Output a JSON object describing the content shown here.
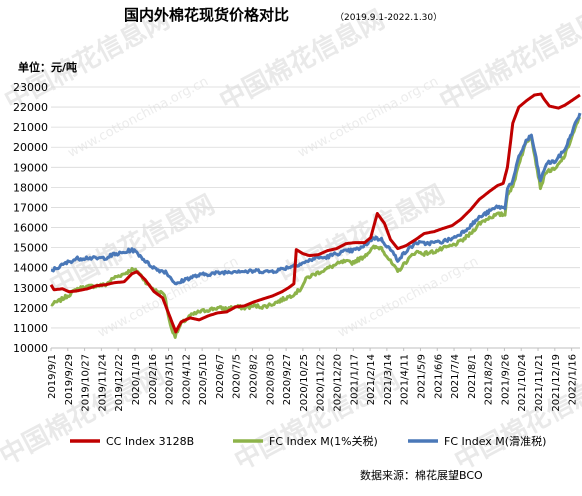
{
  "header": {
    "title": "国内外棉花现货价格对比",
    "title_note": "（2019.9.1-2022.1.30）",
    "unit": "单位：元/吨"
  },
  "watermark": {
    "brand": "中国棉花信息网",
    "url": "www.cottonchina.org.cn"
  },
  "source": "数据来源：棉花展望BCO",
  "colors": {
    "cc": "#c00000",
    "fc_1pct": "#8db34a",
    "fc_sliding": "#4a78b8",
    "grid": "#d9d9d9",
    "axis_text": "#000000"
  },
  "chart_data": {
    "type": "line",
    "title": "国内外棉花现货价格对比",
    "ylabel": "单位：元/吨",
    "ylim": [
      10000,
      23000
    ],
    "yticks": [
      10000,
      11000,
      12000,
      13000,
      14000,
      15000,
      16000,
      17000,
      18000,
      19000,
      20000,
      21000,
      22000,
      23000
    ],
    "xlim": [
      "2019-09-01",
      "2022-01-30"
    ],
    "xticks": [
      "2019/9/1",
      "2019/9/29",
      "2019/10/27",
      "2019/11/24",
      "2019/12/22",
      "2020/1/19",
      "2020/2/16",
      "2020/3/15",
      "2020/4/12",
      "2020/5/10",
      "2020/6/7",
      "2020/7/5",
      "2020/8/2",
      "2020/8/30",
      "2020/9/27",
      "2020/10/25",
      "2020/11/22",
      "2020/12/20",
      "2021/1/17",
      "2021/2/14",
      "2021/3/14",
      "2021/4/11",
      "2021/5/9",
      "2021/6/6",
      "2021/7/4",
      "2021/8/1",
      "2021/8/29",
      "2021/9/26",
      "2021/10/24",
      "2021/11/21",
      "2021/12/19",
      "2022/1/16"
    ],
    "grid": true,
    "legend": "bottom",
    "series": [
      {
        "name": "CC Index 3128B",
        "points": [
          [
            "2019-09-01",
            13150
          ],
          [
            "2019-09-06",
            12900
          ],
          [
            "2019-09-20",
            12950
          ],
          [
            "2019-10-01",
            12800
          ],
          [
            "2019-10-15",
            12850
          ],
          [
            "2019-11-01",
            12950
          ],
          [
            "2019-11-15",
            13100
          ],
          [
            "2019-12-01",
            13150
          ],
          [
            "2019-12-15",
            13250
          ],
          [
            "2020-01-01",
            13300
          ],
          [
            "2020-01-14",
            13700
          ],
          [
            "2020-01-22",
            13800
          ],
          [
            "2020-02-05",
            13400
          ],
          [
            "2020-02-20",
            12800
          ],
          [
            "2020-03-05",
            12500
          ],
          [
            "2020-03-18",
            11500
          ],
          [
            "2020-03-27",
            10800
          ],
          [
            "2020-04-05",
            11300
          ],
          [
            "2020-04-20",
            11500
          ],
          [
            "2020-05-05",
            11400
          ],
          [
            "2020-05-20",
            11600
          ],
          [
            "2020-06-05",
            11750
          ],
          [
            "2020-06-20",
            11800
          ],
          [
            "2020-07-05",
            12050
          ],
          [
            "2020-07-20",
            12100
          ],
          [
            "2020-08-05",
            12300
          ],
          [
            "2020-08-20",
            12450
          ],
          [
            "2020-09-05",
            12600
          ],
          [
            "2020-09-20",
            12800
          ],
          [
            "2020-10-01",
            13000
          ],
          [
            "2020-10-10",
            13200
          ],
          [
            "2020-10-14",
            14900
          ],
          [
            "2020-10-25",
            14700
          ],
          [
            "2020-11-05",
            14600
          ],
          [
            "2020-11-20",
            14650
          ],
          [
            "2020-12-05",
            14850
          ],
          [
            "2020-12-20",
            14950
          ],
          [
            "2021-01-05",
            15200
          ],
          [
            "2021-01-20",
            15250
          ],
          [
            "2021-02-05",
            15250
          ],
          [
            "2021-02-15",
            15500
          ],
          [
            "2021-02-26",
            16700
          ],
          [
            "2021-03-10",
            16200
          ],
          [
            "2021-03-20",
            15400
          ],
          [
            "2021-04-01",
            14950
          ],
          [
            "2021-04-15",
            15100
          ],
          [
            "2021-05-01",
            15400
          ],
          [
            "2021-05-15",
            15700
          ],
          [
            "2021-06-01",
            15800
          ],
          [
            "2021-06-15",
            15950
          ],
          [
            "2021-07-01",
            16100
          ],
          [
            "2021-07-15",
            16400
          ],
          [
            "2021-08-01",
            16900
          ],
          [
            "2021-08-15",
            17400
          ],
          [
            "2021-09-01",
            17800
          ],
          [
            "2021-09-15",
            18100
          ],
          [
            "2021-09-24",
            18200
          ],
          [
            "2021-10-01",
            19000
          ],
          [
            "2021-10-10",
            21200
          ],
          [
            "2021-10-20",
            22000
          ],
          [
            "2021-11-01",
            22300
          ],
          [
            "2021-11-15",
            22600
          ],
          [
            "2021-11-26",
            22650
          ],
          [
            "2021-12-01",
            22400
          ],
          [
            "2021-12-10",
            22050
          ],
          [
            "2021-12-25",
            21950
          ],
          [
            "2022-01-05",
            22100
          ],
          [
            "2022-01-20",
            22400
          ],
          [
            "2022-01-30",
            22600
          ]
        ]
      },
      {
        "name": "FC Index M(1%关税)",
        "points": [
          [
            "2019-09-01",
            12150
          ],
          [
            "2019-09-15",
            12350
          ],
          [
            "2019-10-01",
            12650
          ],
          [
            "2019-10-15",
            12950
          ],
          [
            "2019-11-01",
            13050
          ],
          [
            "2019-11-15",
            13100
          ],
          [
            "2019-12-01",
            13150
          ],
          [
            "2019-12-15",
            13500
          ],
          [
            "2020-01-01",
            13700
          ],
          [
            "2020-01-14",
            13900
          ],
          [
            "2020-01-24",
            13800
          ],
          [
            "2020-02-10",
            13150
          ],
          [
            "2020-02-25",
            12800
          ],
          [
            "2020-03-08",
            12700
          ],
          [
            "2020-03-18",
            11100
          ],
          [
            "2020-03-26",
            10600
          ],
          [
            "2020-04-05",
            11200
          ],
          [
            "2020-04-20",
            11600
          ],
          [
            "2020-05-05",
            11800
          ],
          [
            "2020-05-20",
            11900
          ],
          [
            "2020-06-05",
            12000
          ],
          [
            "2020-06-20",
            11950
          ],
          [
            "2020-07-05",
            12050
          ],
          [
            "2020-07-20",
            12000
          ],
          [
            "2020-08-05",
            12100
          ],
          [
            "2020-08-20",
            12050
          ],
          [
            "2020-09-05",
            12200
          ],
          [
            "2020-09-20",
            12400
          ],
          [
            "2020-10-05",
            12600
          ],
          [
            "2020-10-20",
            12900
          ],
          [
            "2020-11-01",
            13500
          ],
          [
            "2020-11-15",
            13700
          ],
          [
            "2020-12-01",
            13900
          ],
          [
            "2020-12-15",
            14100
          ],
          [
            "2021-01-01",
            14300
          ],
          [
            "2021-01-15",
            14250
          ],
          [
            "2021-02-01",
            14500
          ],
          [
            "2021-02-20",
            15000
          ],
          [
            "2021-03-05",
            15000
          ],
          [
            "2021-03-20",
            14300
          ],
          [
            "2021-04-01",
            13800
          ],
          [
            "2021-04-15",
            14300
          ],
          [
            "2021-05-01",
            14800
          ],
          [
            "2021-05-15",
            14700
          ],
          [
            "2021-06-01",
            14800
          ],
          [
            "2021-06-15",
            14950
          ],
          [
            "2021-07-01",
            15100
          ],
          [
            "2021-07-15",
            15300
          ],
          [
            "2021-08-01",
            15700
          ],
          [
            "2021-08-15",
            16200
          ],
          [
            "2021-09-01",
            16500
          ],
          [
            "2021-09-15",
            16650
          ],
          [
            "2021-09-27",
            16650
          ],
          [
            "2021-10-01",
            17700
          ],
          [
            "2021-10-10",
            18000
          ],
          [
            "2021-10-20",
            19200
          ],
          [
            "2021-11-01",
            20200
          ],
          [
            "2021-11-10",
            20600
          ],
          [
            "2021-11-16",
            19500
          ],
          [
            "2021-11-25",
            18000
          ],
          [
            "2021-12-05",
            18800
          ],
          [
            "2021-12-20",
            18900
          ],
          [
            "2022-01-05",
            19600
          ],
          [
            "2022-01-20",
            20800
          ],
          [
            "2022-01-30",
            21500
          ]
        ]
      },
      {
        "name": "FC Index M(滑准税)",
        "points": [
          [
            "2019-09-01",
            13850
          ],
          [
            "2019-09-15",
            14050
          ],
          [
            "2019-10-01",
            14300
          ],
          [
            "2019-10-15",
            14450
          ],
          [
            "2019-11-01",
            14500
          ],
          [
            "2019-11-15",
            14450
          ],
          [
            "2019-12-01",
            14500
          ],
          [
            "2019-12-15",
            14650
          ],
          [
            "2020-01-01",
            14750
          ],
          [
            "2020-01-14",
            14900
          ],
          [
            "2020-01-24",
            14700
          ],
          [
            "2020-02-10",
            14200
          ],
          [
            "2020-02-25",
            13900
          ],
          [
            "2020-03-10",
            13800
          ],
          [
            "2020-03-20",
            13450
          ],
          [
            "2020-03-28",
            13150
          ],
          [
            "2020-04-10",
            13400
          ],
          [
            "2020-04-25",
            13550
          ],
          [
            "2020-05-10",
            13650
          ],
          [
            "2020-05-25",
            13700
          ],
          [
            "2020-06-10",
            13750
          ],
          [
            "2020-06-25",
            13800
          ],
          [
            "2020-07-10",
            13850
          ],
          [
            "2020-07-25",
            13800
          ],
          [
            "2020-08-10",
            13850
          ],
          [
            "2020-08-25",
            13800
          ],
          [
            "2020-09-10",
            13850
          ],
          [
            "2020-09-22",
            13950
          ],
          [
            "2020-11-01",
            14300
          ],
          [
            "2020-11-15",
            14500
          ],
          [
            "2020-12-01",
            14500
          ],
          [
            "2020-12-15",
            14650
          ],
          [
            "2021-01-01",
            14800
          ],
          [
            "2021-01-15",
            14850
          ],
          [
            "2021-02-01",
            15000
          ],
          [
            "2021-02-20",
            15500
          ],
          [
            "2021-03-05",
            15400
          ],
          [
            "2021-03-20",
            14900
          ],
          [
            "2021-04-01",
            14400
          ],
          [
            "2021-04-15",
            14800
          ],
          [
            "2021-05-01",
            15250
          ],
          [
            "2021-05-15",
            15200
          ],
          [
            "2021-06-01",
            15250
          ],
          [
            "2021-06-15",
            15300
          ],
          [
            "2021-07-01",
            15450
          ],
          [
            "2021-07-15",
            15700
          ],
          [
            "2021-08-01",
            16100
          ],
          [
            "2021-08-15",
            16500
          ],
          [
            "2021-09-01",
            16800
          ],
          [
            "2021-09-15",
            17050
          ],
          [
            "2021-09-27",
            16950
          ],
          [
            "2021-10-01",
            18000
          ],
          [
            "2021-10-10",
            18300
          ],
          [
            "2021-10-20",
            19500
          ],
          [
            "2021-11-01",
            20300
          ],
          [
            "2021-11-10",
            20600
          ],
          [
            "2021-11-16",
            19700
          ],
          [
            "2021-11-25",
            18300
          ],
          [
            "2021-12-05",
            19200
          ],
          [
            "2021-12-20",
            19300
          ],
          [
            "2022-01-05",
            19900
          ],
          [
            "2022-01-20",
            21000
          ],
          [
            "2022-01-30",
            21700
          ]
        ]
      }
    ]
  }
}
